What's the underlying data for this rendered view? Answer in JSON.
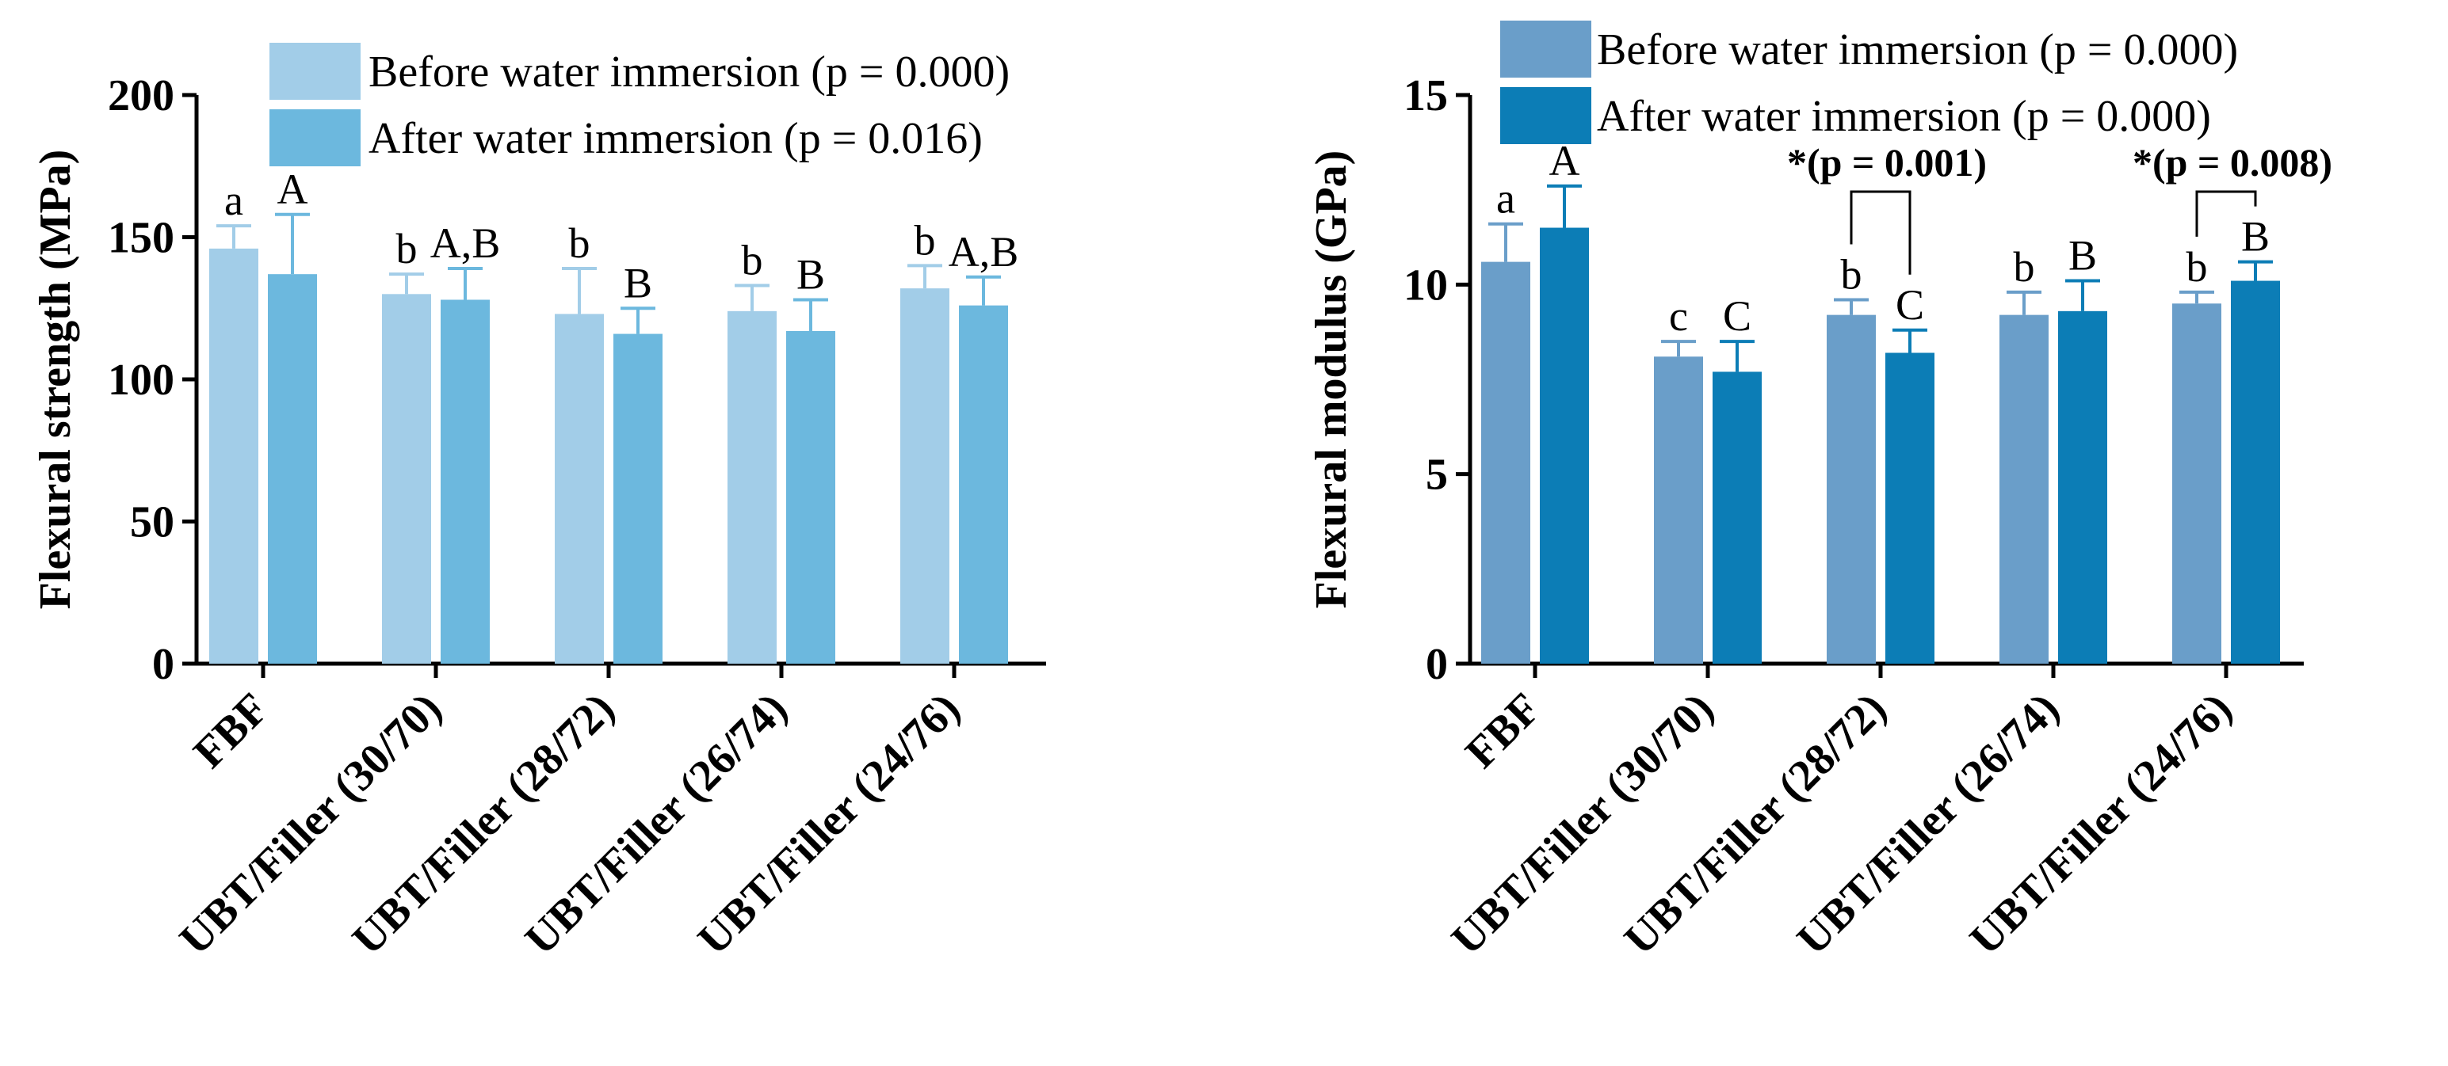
{
  "chart_data": [
    {
      "type": "bar",
      "ylabel": "Flexural strength (MPa)",
      "ylim": [
        0,
        200
      ],
      "yticks": [
        "0",
        "50",
        "100",
        "150",
        "200"
      ],
      "categories": [
        "FBF",
        "UBT/Filler (30/70)",
        "UBT/Filler (28/72)",
        "UBT/Filler (26/74)",
        "UBT/Filler (24/76)"
      ],
      "series": [
        {
          "name": "Before water immersion (p = 0.000)",
          "color": "#a2cde8",
          "values": [
            146,
            130,
            123,
            124,
            132
          ],
          "errors": [
            8,
            7,
            16,
            9,
            8
          ],
          "letters": [
            "a",
            "b",
            "b",
            "b",
            "b"
          ]
        },
        {
          "name": "After water immersion (p = 0.016)",
          "color": "#6cb8de",
          "values": [
            137,
            128,
            116,
            117,
            126
          ],
          "errors": [
            21,
            11,
            9,
            11,
            10
          ],
          "letters": [
            "A",
            "A,B",
            "B",
            "B",
            "A,B"
          ]
        }
      ],
      "annotations": []
    },
    {
      "type": "bar",
      "ylabel": "Flexural modulus (GPa)",
      "ylim": [
        0,
        15
      ],
      "yticks": [
        "0",
        "5",
        "10",
        "15"
      ],
      "categories": [
        "FBF",
        "UBT/Filler (30/70)",
        "UBT/Filler (28/72)",
        "UBT/Filler (26/74)",
        "UBT/Filler (24/76)"
      ],
      "series": [
        {
          "name": "Before water immersion (p = 0.000)",
          "color": "#6a9ec9",
          "values": [
            10.6,
            8.1,
            9.2,
            9.2,
            9.5
          ],
          "errors": [
            1.0,
            0.4,
            0.4,
            0.6,
            0.3
          ],
          "letters": [
            "a",
            "c",
            "b",
            "b",
            "b"
          ]
        },
        {
          "name": "After water immersion (p = 0.000)",
          "color": "#0c7db6",
          "values": [
            11.5,
            7.7,
            8.2,
            9.3,
            10.1
          ],
          "errors": [
            1.1,
            0.8,
            0.6,
            0.8,
            0.5
          ],
          "letters": [
            "A",
            "C",
            "C",
            "B",
            "B"
          ]
        }
      ],
      "annotations": [
        {
          "category": 2,
          "text": "*(p = 0.001)"
        },
        {
          "category": 4,
          "text": "*(p = 0.008)"
        }
      ]
    }
  ]
}
